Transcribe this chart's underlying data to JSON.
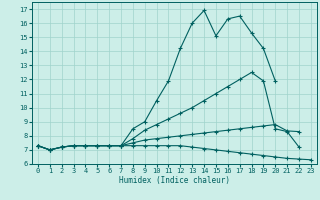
{
  "xlabel": "Humidex (Indice chaleur)",
  "bg_color": "#cceee8",
  "line_color": "#006060",
  "grid_color": "#a0d4cc",
  "xlim": [
    -0.5,
    23.5
  ],
  "ylim": [
    6.0,
    17.5
  ],
  "xticks": [
    0,
    1,
    2,
    3,
    4,
    5,
    6,
    7,
    8,
    9,
    10,
    11,
    12,
    13,
    14,
    15,
    16,
    17,
    18,
    19,
    20,
    21,
    22,
    23
  ],
  "yticks": [
    6,
    7,
    8,
    9,
    10,
    11,
    12,
    13,
    14,
    15,
    16,
    17
  ],
  "line1_x": [
    0,
    1,
    2,
    3,
    4,
    5,
    6,
    7,
    8,
    9,
    10,
    11,
    12,
    13,
    14,
    15,
    16,
    17,
    18,
    19,
    20
  ],
  "line1_y": [
    7.3,
    7.0,
    7.2,
    7.3,
    7.3,
    7.3,
    7.3,
    7.3,
    8.5,
    9.0,
    10.5,
    11.9,
    14.2,
    16.0,
    16.9,
    15.1,
    16.3,
    16.5,
    15.3,
    14.2,
    11.9
  ],
  "line2_x": [
    0,
    1,
    2,
    3,
    4,
    5,
    6,
    7,
    8,
    9,
    10,
    11,
    12,
    13,
    14,
    15,
    16,
    17,
    18,
    19,
    20,
    21,
    22,
    23
  ],
  "line2_y": [
    7.3,
    7.0,
    7.2,
    7.3,
    7.3,
    7.3,
    7.3,
    7.3,
    7.8,
    8.4,
    8.8,
    9.2,
    9.6,
    10.0,
    10.5,
    11.0,
    11.5,
    12.0,
    12.5,
    11.9,
    8.5,
    8.3,
    7.2,
    null
  ],
  "line3_x": [
    0,
    1,
    2,
    3,
    4,
    5,
    6,
    7,
    8,
    9,
    10,
    11,
    12,
    13,
    14,
    15,
    16,
    17,
    18,
    19,
    20,
    21,
    22,
    23
  ],
  "line3_y": [
    7.3,
    7.0,
    7.2,
    7.3,
    7.3,
    7.3,
    7.3,
    7.3,
    7.5,
    7.7,
    7.8,
    7.9,
    8.0,
    8.1,
    8.2,
    8.3,
    8.4,
    8.5,
    8.6,
    8.7,
    8.8,
    8.35,
    8.3,
    null
  ],
  "line4_x": [
    0,
    1,
    2,
    3,
    4,
    5,
    6,
    7,
    8,
    9,
    10,
    11,
    12,
    13,
    14,
    15,
    16,
    17,
    18,
    19,
    20,
    21,
    22,
    23
  ],
  "line4_y": [
    7.3,
    7.0,
    7.2,
    7.3,
    7.3,
    7.3,
    7.3,
    7.3,
    7.3,
    7.3,
    7.3,
    7.3,
    7.3,
    7.2,
    7.1,
    7.0,
    6.9,
    6.8,
    6.7,
    6.6,
    6.5,
    6.4,
    6.35,
    6.3
  ]
}
